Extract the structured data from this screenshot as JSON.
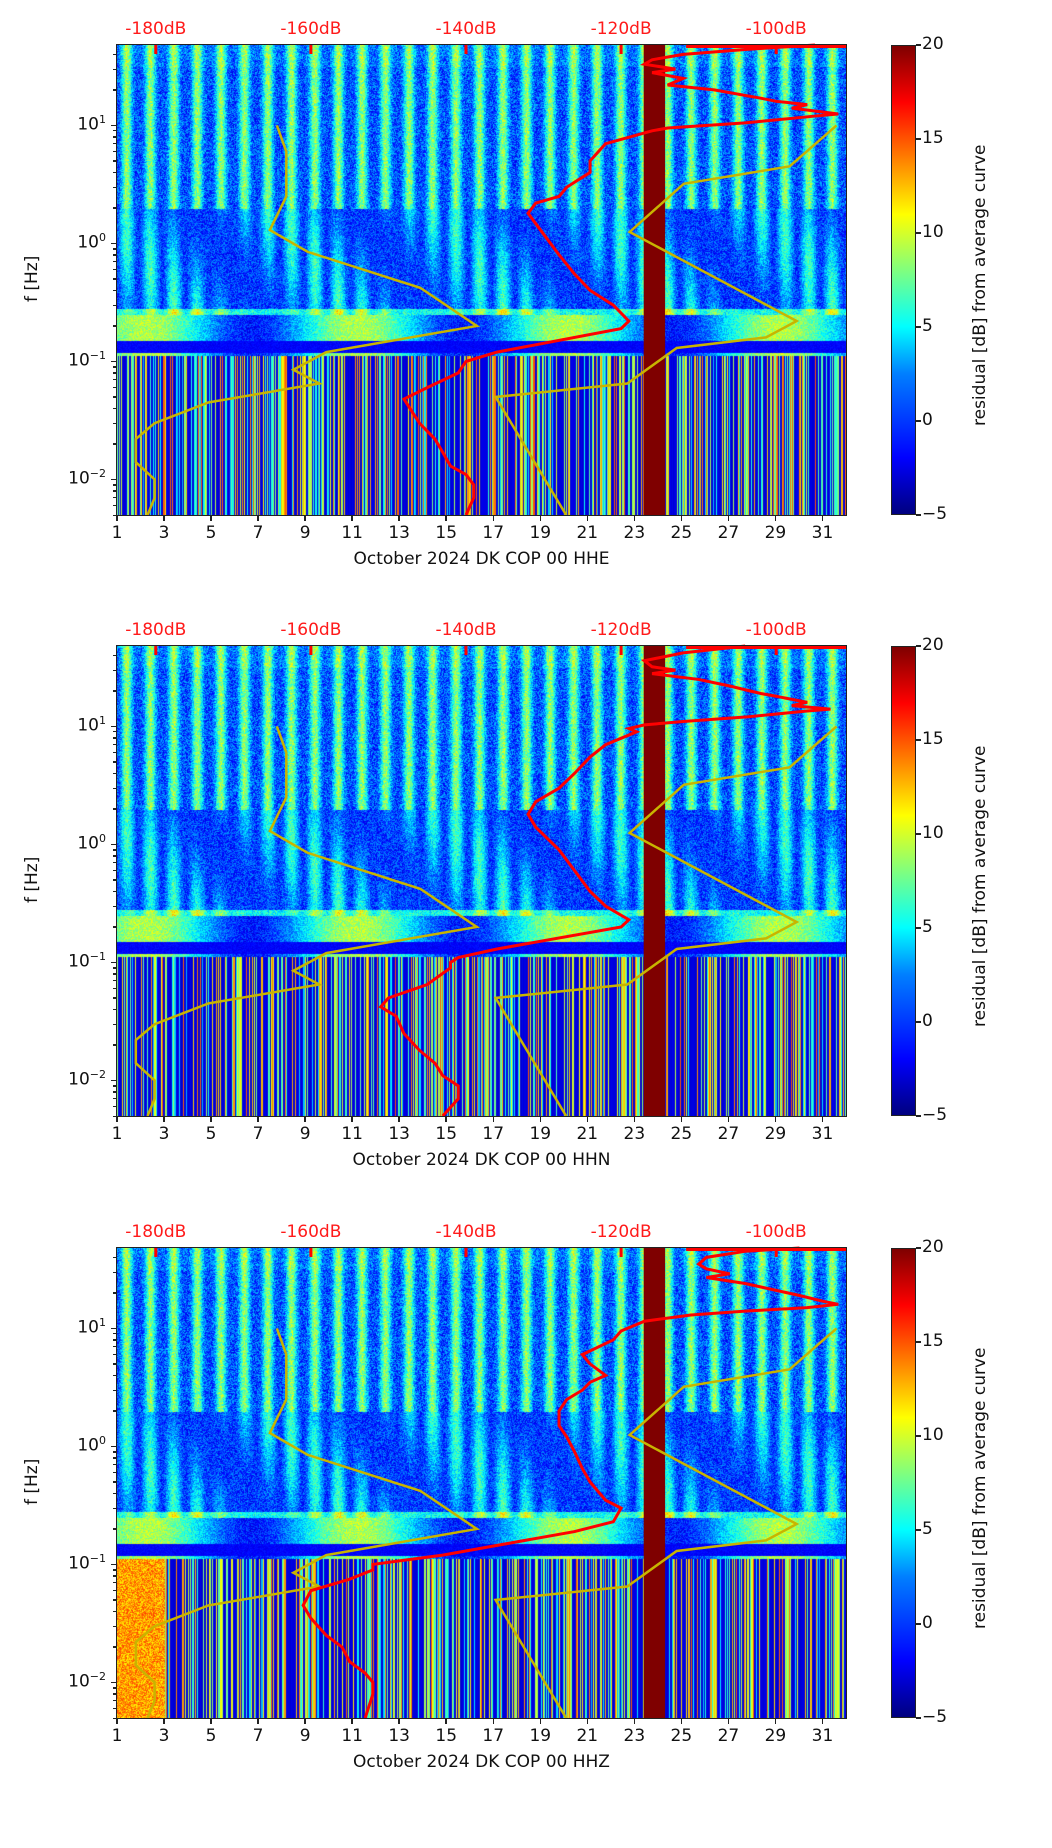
{
  "chart_data": [
    {
      "type": "heatmap",
      "title": "",
      "xlabel": "October 2024 DK COP 00 HHE",
      "ylabel": "f [Hz]",
      "colorbar_label": "residual [dB] from average curve",
      "xlim": [
        1,
        32
      ],
      "ylim": [
        0.005,
        48
      ],
      "yscale": "log",
      "x_ticks": [
        "1",
        "3",
        "5",
        "7",
        "9",
        "11",
        "13",
        "15",
        "17",
        "19",
        "21",
        "23",
        "25",
        "27",
        "29",
        "31"
      ],
      "y_ticks": [
        {
          "base": "10",
          "exp": "1"
        },
        {
          "base": "10",
          "exp": "0"
        },
        {
          "base": "10",
          "exp": "−1"
        },
        {
          "base": "10",
          "exp": "−2"
        }
      ],
      "colorbar_ticks": [
        "20",
        "15",
        "10",
        "5",
        "0",
        "−5"
      ],
      "colorbar_range": [
        -5,
        20
      ],
      "top_db_ticks": [
        "-180dB",
        "-160dB",
        "-140dB",
        "-120dB",
        "-100dB"
      ],
      "top_db_values": [
        -180,
        -160,
        -140,
        -120,
        -100
      ],
      "gap_days": [
        23.4,
        24.3
      ],
      "red_curve_db_vs_freq": [
        [
          -95,
          48
        ],
        [
          -104,
          44
        ],
        [
          -112,
          40
        ],
        [
          -116,
          36
        ],
        [
          -117,
          33
        ],
        [
          -113,
          30
        ],
        [
          -116,
          28
        ],
        [
          -112,
          25
        ],
        [
          -114,
          22
        ],
        [
          -108,
          20
        ],
        [
          -102,
          17
        ],
        [
          -100,
          16
        ],
        [
          -96,
          15
        ],
        [
          -98,
          14
        ],
        [
          -94,
          13
        ],
        [
          -92,
          12.5
        ],
        [
          -95,
          12
        ],
        [
          -104,
          10.5
        ],
        [
          -114,
          9.5
        ],
        [
          -116,
          9
        ],
        [
          -122,
          7
        ],
        [
          -124,
          5
        ],
        [
          -124,
          4
        ],
        [
          -127,
          3
        ],
        [
          -128,
          2.5
        ],
        [
          -131,
          2.2
        ],
        [
          -132,
          1.8
        ],
        [
          -130,
          1.2
        ],
        [
          -128,
          0.8
        ],
        [
          -126,
          0.55
        ],
        [
          -124,
          0.4
        ],
        [
          -121,
          0.3
        ],
        [
          -119,
          0.22
        ],
        [
          -120,
          0.19
        ],
        [
          -136,
          0.12
        ],
        [
          -140,
          0.1
        ],
        [
          -141,
          0.08
        ],
        [
          -145,
          0.06
        ],
        [
          -148,
          0.048
        ],
        [
          -147,
          0.038
        ],
        [
          -146,
          0.03
        ],
        [
          -144,
          0.022
        ],
        [
          -143,
          0.017
        ],
        [
          -142,
          0.013
        ],
        [
          -140,
          0.011
        ],
        [
          -139,
          0.009
        ],
        [
          -139,
          0.007
        ],
        [
          -140,
          0.005
        ]
      ],
      "yellow_curve_day_vs_freq": [
        [
          7.8,
          10
        ],
        [
          8.2,
          6
        ],
        [
          8.2,
          2.5
        ],
        [
          7.5,
          1.3
        ],
        [
          9.1,
          0.85
        ],
        [
          13.9,
          0.42
        ],
        [
          16.3,
          0.2
        ],
        [
          9.9,
          0.12
        ],
        [
          8.5,
          0.085
        ],
        [
          9.6,
          0.065
        ],
        [
          4.9,
          0.045
        ],
        [
          2.6,
          0.03
        ],
        [
          1.8,
          0.022
        ],
        [
          1.8,
          0.014
        ],
        [
          2.6,
          0.01
        ],
        [
          2.6,
          0.007
        ],
        [
          2.3,
          0.005
        ]
      ],
      "yellow_curve2_day_vs_freq": [
        [
          20.1,
          0.005
        ],
        [
          17.1,
          0.05
        ],
        [
          22.7,
          0.065
        ],
        [
          24.8,
          0.13
        ],
        [
          28.6,
          0.16
        ],
        [
          29.9,
          0.22
        ],
        [
          22.8,
          1.25
        ],
        [
          25.1,
          3.2
        ],
        [
          29.6,
          4.5
        ],
        [
          31.6,
          10
        ]
      ]
    },
    {
      "type": "heatmap",
      "title": "",
      "xlabel": "October 2024 DK COP 00 HHN",
      "ylabel": "f [Hz]",
      "colorbar_label": "residual [dB] from average curve",
      "xlim": [
        1,
        32
      ],
      "ylim": [
        0.005,
        48
      ],
      "yscale": "log",
      "x_ticks": [
        "1",
        "3",
        "5",
        "7",
        "9",
        "11",
        "13",
        "15",
        "17",
        "19",
        "21",
        "23",
        "25",
        "27",
        "29",
        "31"
      ],
      "y_ticks": [
        {
          "base": "10",
          "exp": "1"
        },
        {
          "base": "10",
          "exp": "0"
        },
        {
          "base": "10",
          "exp": "−1"
        },
        {
          "base": "10",
          "exp": "−2"
        }
      ],
      "colorbar_ticks": [
        "20",
        "15",
        "10",
        "5",
        "0",
        "−5"
      ],
      "colorbar_range": [
        -5,
        20
      ],
      "top_db_ticks": [
        "-180dB",
        "-160dB",
        "-140dB",
        "-120dB",
        "-100dB"
      ],
      "top_db_values": [
        -180,
        -160,
        -140,
        -120,
        -100
      ],
      "gap_days": [
        23.4,
        24.3
      ],
      "red_curve_db_vs_freq": [
        [
          -104,
          48
        ],
        [
          -112,
          42
        ],
        [
          -117,
          36
        ],
        [
          -116,
          32
        ],
        [
          -113,
          30
        ],
        [
          -116,
          28
        ],
        [
          -110,
          25
        ],
        [
          -106,
          22
        ],
        [
          -102,
          19
        ],
        [
          -100,
          18
        ],
        [
          -96,
          16
        ],
        [
          -98,
          15
        ],
        [
          -93,
          14
        ],
        [
          -96,
          13.5
        ],
        [
          -104,
          12
        ],
        [
          -112,
          11
        ],
        [
          -117,
          10.3
        ],
        [
          -119,
          9.6
        ],
        [
          -118,
          9
        ],
        [
          -122,
          7
        ],
        [
          -124,
          5.5
        ],
        [
          -126,
          4
        ],
        [
          -128,
          3
        ],
        [
          -131,
          2.3
        ],
        [
          -132,
          1.8
        ],
        [
          -131,
          1.4
        ],
        [
          -128,
          0.9
        ],
        [
          -126,
          0.6
        ],
        [
          -124,
          0.4
        ],
        [
          -122,
          0.3
        ],
        [
          -119,
          0.23
        ],
        [
          -120,
          0.2
        ],
        [
          -136,
          0.13
        ],
        [
          -141,
          0.11
        ],
        [
          -142,
          0.1
        ],
        [
          -142,
          0.09
        ],
        [
          -145,
          0.065
        ],
        [
          -150,
          0.05
        ],
        [
          -151,
          0.042
        ],
        [
          -149,
          0.035
        ],
        [
          -148,
          0.025
        ],
        [
          -146,
          0.018
        ],
        [
          -144,
          0.014
        ],
        [
          -143,
          0.011
        ],
        [
          -141,
          0.009
        ],
        [
          -141,
          0.007
        ],
        [
          -143,
          0.005
        ]
      ],
      "yellow_curve_day_vs_freq": [
        [
          7.8,
          10
        ],
        [
          8.2,
          6
        ],
        [
          8.2,
          2.5
        ],
        [
          7.5,
          1.3
        ],
        [
          9.1,
          0.85
        ],
        [
          13.9,
          0.42
        ],
        [
          16.3,
          0.2
        ],
        [
          9.9,
          0.12
        ],
        [
          8.5,
          0.085
        ],
        [
          9.6,
          0.065
        ],
        [
          4.9,
          0.045
        ],
        [
          2.6,
          0.03
        ],
        [
          1.8,
          0.022
        ],
        [
          1.8,
          0.014
        ],
        [
          2.6,
          0.01
        ],
        [
          2.6,
          0.007
        ],
        [
          2.3,
          0.005
        ]
      ],
      "yellow_curve2_day_vs_freq": [
        [
          20.1,
          0.005
        ],
        [
          17.1,
          0.05
        ],
        [
          22.7,
          0.065
        ],
        [
          24.8,
          0.13
        ],
        [
          28.6,
          0.16
        ],
        [
          29.9,
          0.22
        ],
        [
          22.8,
          1.25
        ],
        [
          25.1,
          3.2
        ],
        [
          29.6,
          4.5
        ],
        [
          31.6,
          10
        ]
      ]
    },
    {
      "type": "heatmap",
      "title": "",
      "xlabel": "October 2024 DK COP 00 HHZ",
      "ylabel": "f [Hz]",
      "colorbar_label": "residual [dB] from average curve",
      "xlim": [
        1,
        32
      ],
      "ylim": [
        0.005,
        48
      ],
      "yscale": "log",
      "x_ticks": [
        "1",
        "3",
        "5",
        "7",
        "9",
        "11",
        "13",
        "15",
        "17",
        "19",
        "21",
        "23",
        "25",
        "27",
        "29",
        "31"
      ],
      "y_ticks": [
        {
          "base": "10",
          "exp": "1"
        },
        {
          "base": "10",
          "exp": "0"
        },
        {
          "base": "10",
          "exp": "−1"
        },
        {
          "base": "10",
          "exp": "−2"
        }
      ],
      "colorbar_ticks": [
        "20",
        "15",
        "10",
        "5",
        "0",
        "−5"
      ],
      "colorbar_range": [
        -5,
        20
      ],
      "top_db_ticks": [
        "-180dB",
        "-160dB",
        "-140dB",
        "-120dB",
        "-100dB"
      ],
      "top_db_values": [
        -180,
        -160,
        -140,
        -120,
        -100
      ],
      "gap_days": [
        23.4,
        24.3
      ],
      "red_curve_db_vs_freq": [
        [
          -97,
          48
        ],
        [
          -104,
          45
        ],
        [
          -109,
          40
        ],
        [
          -110,
          35
        ],
        [
          -109,
          32
        ],
        [
          -106,
          29
        ],
        [
          -109,
          27
        ],
        [
          -104,
          24
        ],
        [
          -100,
          21
        ],
        [
          -97,
          19
        ],
        [
          -94,
          17
        ],
        [
          -92,
          16
        ],
        [
          -96,
          15
        ],
        [
          -104,
          14
        ],
        [
          -111,
          13
        ],
        [
          -117,
          11.5
        ],
        [
          -120,
          9.5
        ],
        [
          -121,
          8
        ],
        [
          -125,
          6
        ],
        [
          -124,
          5
        ],
        [
          -122,
          4
        ],
        [
          -124,
          3.5
        ],
        [
          -125,
          3
        ],
        [
          -127,
          2.5
        ],
        [
          -128,
          2
        ],
        [
          -128,
          1.5
        ],
        [
          -127,
          1.2
        ],
        [
          -126,
          0.9
        ],
        [
          -125,
          0.65
        ],
        [
          -124,
          0.5
        ],
        [
          -122,
          0.35
        ],
        [
          -120,
          0.3
        ],
        [
          -121,
          0.23
        ],
        [
          -126,
          0.19
        ],
        [
          -143,
          0.12
        ],
        [
          -152,
          0.1
        ],
        [
          -152,
          0.09
        ],
        [
          -155,
          0.075
        ],
        [
          -160,
          0.06
        ],
        [
          -161,
          0.045
        ],
        [
          -160,
          0.035
        ],
        [
          -158,
          0.025
        ],
        [
          -156,
          0.02
        ],
        [
          -155,
          0.015
        ],
        [
          -153,
          0.012
        ],
        [
          -152,
          0.01
        ],
        [
          -152,
          0.008
        ],
        [
          -153,
          0.005
        ]
      ],
      "yellow_curve_day_vs_freq": [
        [
          7.8,
          10
        ],
        [
          8.2,
          6
        ],
        [
          8.2,
          2.5
        ],
        [
          7.5,
          1.3
        ],
        [
          9.1,
          0.85
        ],
        [
          13.9,
          0.42
        ],
        [
          16.3,
          0.2
        ],
        [
          9.9,
          0.12
        ],
        [
          8.5,
          0.085
        ],
        [
          9.6,
          0.065
        ],
        [
          4.9,
          0.045
        ],
        [
          2.6,
          0.03
        ],
        [
          1.8,
          0.022
        ],
        [
          1.8,
          0.014
        ],
        [
          2.6,
          0.01
        ],
        [
          2.6,
          0.007
        ],
        [
          2.3,
          0.005
        ]
      ],
      "yellow_curve2_day_vs_freq": [
        [
          20.1,
          0.005
        ],
        [
          17.1,
          0.05
        ],
        [
          22.7,
          0.065
        ],
        [
          24.8,
          0.13
        ],
        [
          28.6,
          0.16
        ],
        [
          29.9,
          0.22
        ],
        [
          22.8,
          1.25
        ],
        [
          25.1,
          3.2
        ],
        [
          29.6,
          4.5
        ],
        [
          31.6,
          10
        ]
      ]
    }
  ],
  "colors": {
    "red_curve": "#ff0000",
    "yellow_curve": "#c8b400",
    "gap": "#7f0000",
    "db_label": "#ff1a1a"
  }
}
